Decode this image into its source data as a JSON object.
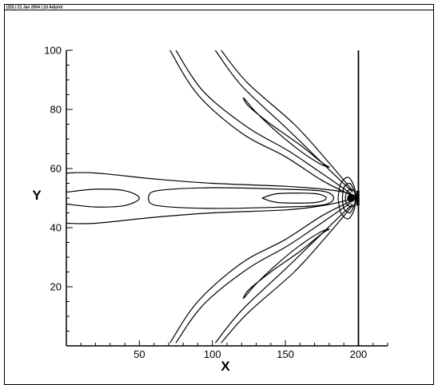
{
  "header": {
    "text": "(2D) | 21 Jan 2004 | 2d Adjoint"
  },
  "chart_data": {
    "type": "contour",
    "xlabel": "X",
    "ylabel": "Y",
    "xlim": [
      0,
      220
    ],
    "ylim": [
      0,
      100
    ],
    "x_ticks": [
      "50",
      "100",
      "150",
      "200"
    ],
    "y_ticks": [
      "20",
      "40",
      "60",
      "80",
      "100"
    ],
    "x_tick_values": [
      50,
      100,
      150,
      200
    ],
    "y_tick_values": [
      20,
      40,
      60,
      80,
      100
    ],
    "wall_x": 200,
    "contours": [
      {
        "name": "band-outer",
        "points": [
          [
            0,
            58.5
          ],
          [
            20,
            58.5
          ],
          [
            60,
            56.5
          ],
          [
            100,
            55
          ],
          [
            150,
            54
          ],
          [
            176,
            53
          ],
          [
            190,
            52
          ],
          [
            198,
            50.5
          ],
          [
            190,
            49
          ],
          [
            176,
            47.5
          ],
          [
            150,
            46
          ],
          [
            100,
            45
          ],
          [
            60,
            43.5
          ],
          [
            20,
            41.5
          ],
          [
            0,
            41.5
          ]
        ]
      },
      {
        "name": "band-left-inner",
        "points": [
          [
            0,
            52
          ],
          [
            20,
            53
          ],
          [
            40,
            52.5
          ],
          [
            50,
            50
          ],
          [
            40,
            47.5
          ],
          [
            20,
            47
          ],
          [
            0,
            48
          ]
        ]
      },
      {
        "name": "band-right-inner",
        "points": [
          [
            56,
            50
          ],
          [
            62,
            52.5
          ],
          [
            100,
            53.5
          ],
          [
            150,
            53
          ],
          [
            176,
            52.3
          ],
          [
            183,
            50
          ],
          [
            176,
            47.7
          ],
          [
            150,
            47
          ],
          [
            100,
            46.5
          ],
          [
            62,
            47.5
          ],
          [
            56,
            50
          ]
        ]
      },
      {
        "name": "band-tip",
        "points": [
          [
            134,
            50
          ],
          [
            145,
            51.5
          ],
          [
            170,
            51.5
          ],
          [
            178,
            50
          ],
          [
            170,
            48.5
          ],
          [
            145,
            48.5
          ],
          [
            134,
            50
          ]
        ]
      },
      {
        "name": "up-left-outer",
        "points": [
          [
            71,
            100
          ],
          [
            90,
            85
          ],
          [
            120,
            72
          ],
          [
            150,
            64
          ],
          [
            175,
            56
          ],
          [
            195,
            51
          ]
        ]
      },
      {
        "name": "up-left-inner",
        "points": [
          [
            75,
            100
          ],
          [
            94,
            86
          ],
          [
            124,
            74
          ],
          [
            152,
            66
          ],
          [
            176,
            58
          ],
          [
            195,
            51.5
          ]
        ]
      },
      {
        "name": "up-right-outer",
        "points": [
          [
            102,
            100
          ],
          [
            120,
            88
          ],
          [
            150,
            74
          ],
          [
            175,
            62
          ],
          [
            196,
            52
          ]
        ]
      },
      {
        "name": "up-right-mid",
        "points": [
          [
            106,
            100
          ],
          [
            124,
            89
          ],
          [
            156,
            75
          ],
          [
            178,
            63
          ],
          [
            196,
            52.5
          ]
        ]
      },
      {
        "name": "up-loop",
        "points": [
          [
            121,
            84
          ],
          [
            125,
            81
          ],
          [
            140,
            75
          ],
          [
            160,
            68
          ],
          [
            175,
            62
          ],
          [
            180,
            60.5
          ],
          [
            174,
            61.5
          ],
          [
            160,
            66
          ],
          [
            145,
            72
          ],
          [
            130,
            79
          ],
          [
            123,
            83
          ],
          [
            121,
            84
          ]
        ]
      },
      {
        "name": "down-left-outer",
        "points": [
          [
            71,
            1
          ],
          [
            90,
            15
          ],
          [
            120,
            28
          ],
          [
            150,
            36
          ],
          [
            175,
            44
          ],
          [
            195,
            49
          ]
        ]
      },
      {
        "name": "down-left-inner",
        "points": [
          [
            75,
            1
          ],
          [
            94,
            14
          ],
          [
            124,
            26
          ],
          [
            152,
            34
          ],
          [
            176,
            42
          ],
          [
            195,
            48.5
          ]
        ]
      },
      {
        "name": "down-right-outer",
        "points": [
          [
            102,
            1
          ],
          [
            120,
            12
          ],
          [
            150,
            26
          ],
          [
            175,
            38
          ],
          [
            196,
            48
          ]
        ]
      },
      {
        "name": "down-right-mid",
        "points": [
          [
            106,
            1
          ],
          [
            124,
            11
          ],
          [
            156,
            25
          ],
          [
            178,
            37
          ],
          [
            196,
            47.5
          ]
        ]
      },
      {
        "name": "down-loop",
        "points": [
          [
            121,
            16
          ],
          [
            125,
            19
          ],
          [
            140,
            25
          ],
          [
            160,
            32
          ],
          [
            175,
            38
          ],
          [
            180,
            39.5
          ],
          [
            174,
            38.5
          ],
          [
            160,
            34
          ],
          [
            145,
            28
          ],
          [
            130,
            21
          ],
          [
            123,
            17
          ],
          [
            121,
            16
          ]
        ]
      },
      {
        "name": "source-ring-1",
        "points": [
          [
            186,
            50
          ],
          [
            188,
            55
          ],
          [
            193,
            57
          ],
          [
            197,
            54
          ],
          [
            198,
            50
          ],
          [
            197,
            46
          ],
          [
            193,
            43
          ],
          [
            188,
            45
          ],
          [
            186,
            50
          ]
        ]
      },
      {
        "name": "source-ring-2",
        "points": [
          [
            189,
            50
          ],
          [
            190,
            53.5
          ],
          [
            194,
            55
          ],
          [
            197,
            52.5
          ],
          [
            198,
            50
          ],
          [
            197,
            47.5
          ],
          [
            194,
            45
          ],
          [
            190,
            46.5
          ],
          [
            189,
            50
          ]
        ]
      },
      {
        "name": "source-ring-3",
        "points": [
          [
            191,
            50
          ],
          [
            192,
            52
          ],
          [
            195,
            53
          ],
          [
            198,
            51.5
          ],
          [
            198,
            48.5
          ],
          [
            195,
            47
          ],
          [
            192,
            48
          ],
          [
            191,
            50
          ]
        ]
      }
    ]
  }
}
